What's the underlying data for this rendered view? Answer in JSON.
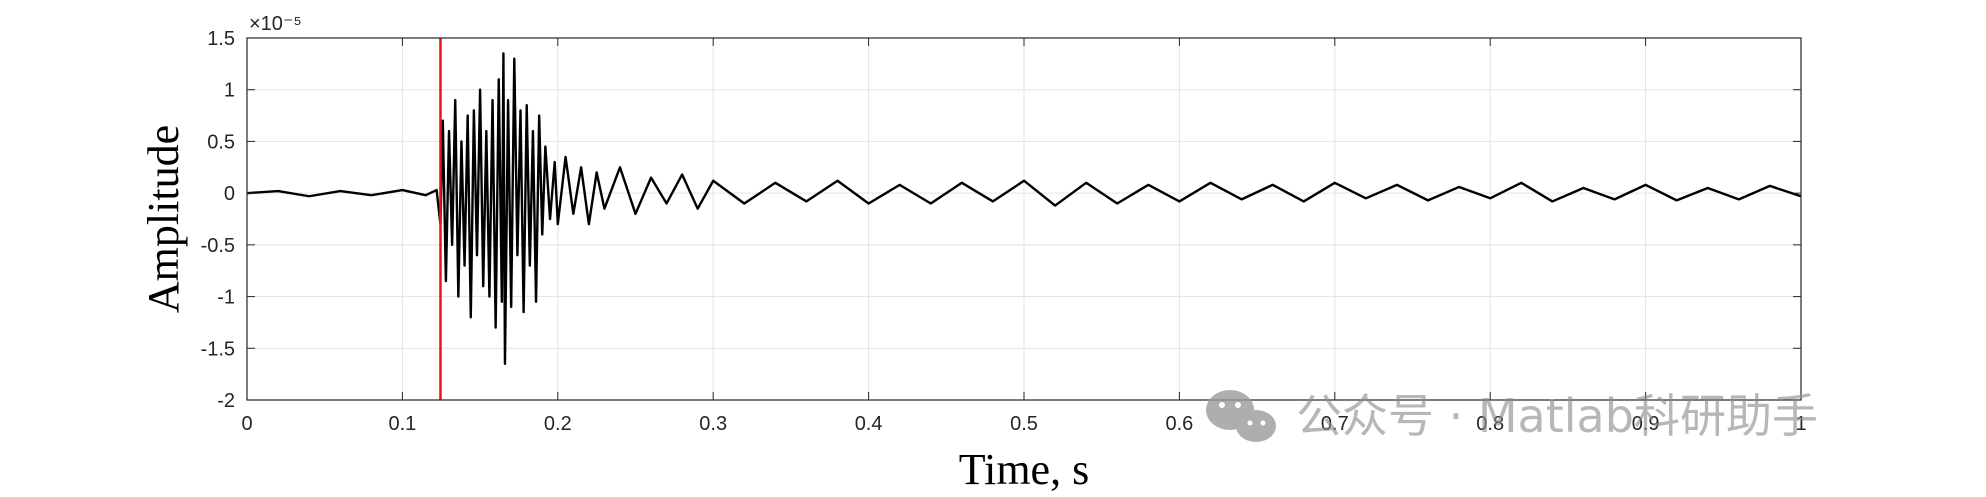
{
  "chart_data": {
    "type": "line",
    "xlabel": "Time, s",
    "ylabel": "Amplitude",
    "y_exponent_label": "×10⁻⁵",
    "xlim": [
      0,
      1
    ],
    "ylim": [
      -2,
      1.5
    ],
    "x_ticks": [
      "0",
      "0.1",
      "0.2",
      "0.3",
      "0.4",
      "0.5",
      "0.6",
      "0.7",
      "0.8",
      "0.9",
      "1"
    ],
    "y_ticks": [
      "1.5",
      "1",
      "0.5",
      "0",
      "-0.5",
      "-1",
      "-1.5",
      "-2"
    ],
    "grid": true,
    "series": [
      {
        "color": "#000000",
        "x": [
          0,
          0.02,
          0.04,
          0.06,
          0.08,
          0.1,
          0.115,
          0.122,
          0.1245,
          0.126,
          0.128,
          0.13,
          0.132,
          0.134,
          0.136,
          0.138,
          0.14,
          0.142,
          0.144,
          0.146,
          0.148,
          0.15,
          0.152,
          0.154,
          0.156,
          0.158,
          0.16,
          0.162,
          0.164,
          0.165,
          0.166,
          0.168,
          0.17,
          0.172,
          0.174,
          0.176,
          0.178,
          0.18,
          0.182,
          0.184,
          0.186,
          0.188,
          0.19,
          0.192,
          0.195,
          0.198,
          0.2,
          0.205,
          0.21,
          0.215,
          0.22,
          0.225,
          0.23,
          0.24,
          0.25,
          0.26,
          0.27,
          0.28,
          0.29,
          0.3,
          0.32,
          0.34,
          0.36,
          0.38,
          0.4,
          0.42,
          0.44,
          0.46,
          0.48,
          0.5,
          0.52,
          0.54,
          0.56,
          0.58,
          0.6,
          0.62,
          0.64,
          0.66,
          0.68,
          0.7,
          0.72,
          0.74,
          0.76,
          0.78,
          0.8,
          0.82,
          0.84,
          0.86,
          0.88,
          0.9,
          0.92,
          0.94,
          0.96,
          0.98,
          1.0
        ],
        "y": [
          0,
          0.02,
          -0.03,
          0.02,
          -0.02,
          0.03,
          -0.02,
          0.03,
          -0.3,
          0.7,
          -0.85,
          0.6,
          -0.5,
          0.9,
          -1.0,
          0.5,
          -0.7,
          0.75,
          -1.2,
          0.8,
          -0.6,
          1.0,
          -0.9,
          0.6,
          -1.0,
          0.9,
          -1.3,
          1.1,
          -1.05,
          1.35,
          -1.65,
          0.9,
          -1.1,
          1.3,
          -0.6,
          0.8,
          -1.15,
          0.85,
          -0.7,
          0.6,
          -1.05,
          0.75,
          -0.4,
          0.45,
          -0.25,
          0.3,
          -0.3,
          0.35,
          -0.2,
          0.25,
          -0.3,
          0.2,
          -0.15,
          0.25,
          -0.2,
          0.15,
          -0.1,
          0.18,
          -0.15,
          0.12,
          -0.1,
          0.1,
          -0.08,
          0.12,
          -0.1,
          0.08,
          -0.1,
          0.1,
          -0.08,
          0.12,
          -0.12,
          0.1,
          -0.1,
          0.08,
          -0.08,
          0.1,
          -0.06,
          0.08,
          -0.08,
          0.1,
          -0.05,
          0.08,
          -0.07,
          0.06,
          -0.05,
          0.1,
          -0.08,
          0.05,
          -0.06,
          0.08,
          -0.07,
          0.05,
          -0.06,
          0.07,
          -0.03
        ]
      }
    ],
    "vline": {
      "x": 0.1245,
      "color": "#e8141b"
    }
  },
  "watermark": {
    "text": "公众号 · Matlab科研助手",
    "icon": "wechat-icon"
  }
}
